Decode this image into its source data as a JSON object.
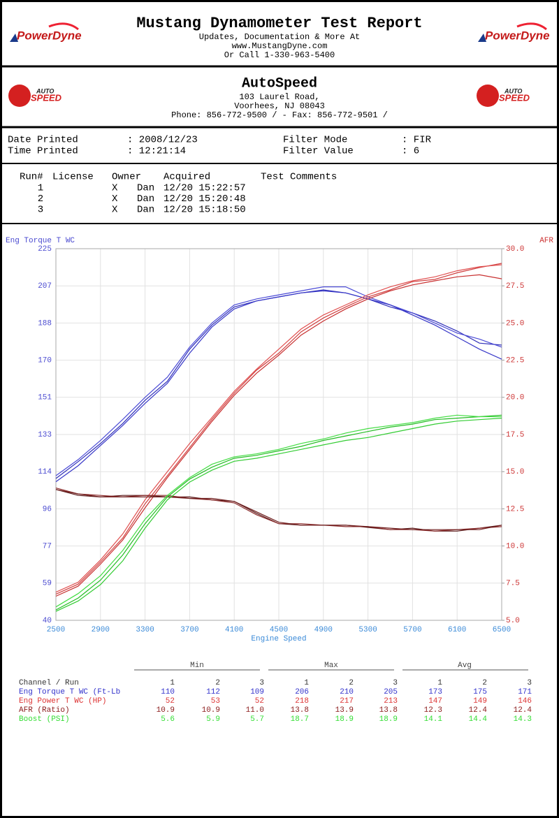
{
  "header": {
    "title": "Mustang Dynamometer Test Report",
    "lines": [
      "Updates, Documentation & More At",
      "www.MustangDyne.com",
      "Or Call 1-330-963-5400"
    ],
    "logo_text": "PowerDyne"
  },
  "shop": {
    "name": "AutoSpeed",
    "lines": [
      "103 Laurel Road,",
      "Voorhees, NJ  08043",
      "Phone: 856-772-9500 /  - Fax: 856-772-9501 /"
    ],
    "logo_top": "AUTO",
    "logo_bottom": "SPEED"
  },
  "info": [
    [
      "Date Printed",
      ": 2008/12/23",
      "Filter Mode",
      ": FIR"
    ],
    [
      "Time Printed",
      ": 12:21:14",
      "Filter Value",
      ": 6"
    ]
  ],
  "runs": {
    "headers": [
      "Run#",
      "License",
      "Owner",
      "Acquired",
      "Test Comments"
    ],
    "rows": [
      [
        "1",
        "X",
        "Dan",
        "12/20 15:22:57"
      ],
      [
        "2",
        "X",
        "Dan",
        "12/20 15:20:48"
      ],
      [
        "3",
        "X",
        "Dan",
        "12/20 15:18:50"
      ]
    ]
  },
  "chart_data": {
    "type": "line",
    "ylabel": "Eng Torque T WC",
    "y2label": "AFR",
    "xlabel": "Engine Speed",
    "grid": true,
    "xlim": [
      2500,
      6500
    ],
    "xticks": [
      2500,
      2900,
      3300,
      3700,
      4100,
      4500,
      4900,
      5300,
      5700,
      6100,
      6500
    ],
    "ylim": [
      40,
      225
    ],
    "yticks": [
      40,
      {
        "value": 58.5,
        "label": "59"
      },
      77,
      {
        "value": 95.5,
        "label": "96"
      },
      114,
      {
        "value": 132.5,
        "label": "133"
      },
      151,
      {
        "value": 169.5,
        "label": "170"
      },
      188,
      {
        "value": 206.5,
        "label": "207"
      },
      225
    ],
    "y2lim": [
      5,
      30
    ],
    "y2ticks": [
      {
        "value": 5,
        "label": "5.0"
      },
      7.5,
      {
        "value": 10,
        "label": "10.0"
      },
      12.5,
      {
        "value": 15,
        "label": "15.0"
      },
      17.5,
      {
        "value": 20,
        "label": "20.0"
      },
      22.5,
      {
        "value": 25,
        "label": "25.0"
      },
      27.5,
      {
        "value": 30,
        "label": "30.0"
      }
    ],
    "x": [
      2500,
      2700,
      2900,
      3100,
      3300,
      3500,
      3700,
      3900,
      4100,
      4300,
      4500,
      4700,
      4900,
      5100,
      5300,
      5500,
      5700,
      5900,
      6100,
      6300,
      6500
    ],
    "series": [
      {
        "color": "#2e2eb8",
        "values": [
          110.6,
          119,
          128,
          138,
          149.5,
          159,
          175,
          187,
          196,
          199,
          201,
          203,
          204.5,
          203,
          200,
          196,
          193,
          189,
          184,
          178,
          177
        ]
      },
      {
        "color": "#4b4bd6",
        "values": [
          112,
          120,
          129.5,
          140,
          151,
          161,
          176,
          188,
          197,
          200,
          202,
          204,
          206,
          206,
          201,
          197,
          193,
          188,
          183,
          180,
          176
        ]
      },
      {
        "color": "#3838c8",
        "values": [
          109,
          117,
          127,
          137,
          148,
          158,
          173,
          186,
          195,
          199,
          201,
          203,
          204,
          203,
          200,
          197,
          192,
          187,
          181,
          175,
          170
        ]
      },
      {
        "color": "#d04040",
        "values": [
          53,
          58,
          69,
          81,
          98,
          112,
          126,
          140,
          153,
          164.5,
          173,
          183.6,
          190.5,
          196,
          201,
          204.5,
          208.6,
          209.7,
          213,
          215.6,
          217.7
        ]
      },
      {
        "color": "#e05050",
        "values": [
          54,
          59,
          70,
          83,
          100,
          114,
          128,
          141,
          154,
          165,
          175,
          185,
          192,
          197,
          202,
          206,
          209,
          211,
          214,
          216,
          217
        ]
      },
      {
        "color": "#c83030",
        "values": [
          52,
          57,
          68,
          80,
          96,
          111,
          125,
          139,
          152,
          163,
          172,
          182,
          189,
          195,
          200,
          204,
          207,
          209,
          211,
          212,
          210
        ]
      },
      {
        "color": "#5a1a1a",
        "axis": "y2",
        "values": [
          13.8,
          13.4,
          13.3,
          13.4,
          13.4,
          13.3,
          13.3,
          13.1,
          13.0,
          12.2,
          11.5,
          11.4,
          11.4,
          11.4,
          11.25,
          11.1,
          11.2,
          11.0,
          11.0,
          11.2,
          11.4
        ]
      },
      {
        "color": "#8b2b2b",
        "axis": "y2",
        "values": [
          13.9,
          13.5,
          13.4,
          13.3,
          13.4,
          13.4,
          13.2,
          13.1,
          12.9,
          12.1,
          11.5,
          11.5,
          11.4,
          11.3,
          11.3,
          11.1,
          11.1,
          11.0,
          11.1,
          11.2,
          11.3
        ]
      },
      {
        "color": "#701f1f",
        "axis": "y2",
        "values": [
          13.8,
          13.5,
          13.3,
          13.3,
          13.3,
          13.3,
          13.2,
          13.2,
          13.0,
          12.3,
          11.6,
          11.4,
          11.4,
          11.4,
          11.3,
          11.2,
          11.1,
          11.1,
          11.1,
          11.1,
          11.4
        ]
      },
      {
        "color": "#22bb22",
        "axis": "y2",
        "values": [
          5.7,
          6.5,
          7.7,
          9.4,
          11.5,
          13.3,
          14.5,
          15.3,
          15.9,
          16.1,
          16.4,
          16.7,
          17.1,
          17.4,
          17.7,
          18.0,
          18.2,
          18.5,
          18.6,
          18.7,
          18.8
        ]
      },
      {
        "color": "#44dd44",
        "axis": "y2",
        "values": [
          5.9,
          6.8,
          8.0,
          9.7,
          11.8,
          13.4,
          14.6,
          15.5,
          16.0,
          16.2,
          16.5,
          16.9,
          17.2,
          17.6,
          17.9,
          18.1,
          18.3,
          18.6,
          18.8,
          18.7,
          18.7
        ]
      },
      {
        "color": "#33cc33",
        "axis": "y2",
        "values": [
          5.6,
          6.3,
          7.4,
          9.0,
          11.2,
          13.1,
          14.3,
          15.1,
          15.7,
          15.9,
          16.2,
          16.5,
          16.8,
          17.1,
          17.3,
          17.6,
          17.9,
          18.2,
          18.4,
          18.5,
          18.6
        ]
      }
    ]
  },
  "stats": {
    "groups": [
      "Min",
      "Max",
      "Avg"
    ],
    "corner": "Channel / Run",
    "runs": [
      "1",
      "2",
      "3",
      "1",
      "2",
      "3",
      "1",
      "2",
      "3"
    ],
    "rows": [
      {
        "name": "Eng Torque T WC (Ft-Lb",
        "color": "#3333cc",
        "cells": [
          "110",
          "112",
          "109",
          "206",
          "210",
          "205",
          "173",
          "175",
          "171"
        ]
      },
      {
        "name": "Eng Power T WC (HP)",
        "color": "#dd3333",
        "cells": [
          "52",
          "53",
          "52",
          "218",
          "217",
          "213",
          "147",
          "149",
          "146"
        ]
      },
      {
        "name": "AFR (Ratio)",
        "color": "#8b1a1a",
        "cells": [
          "10.9",
          "10.9",
          "11.0",
          "13.8",
          "13.9",
          "13.8",
          "12.3",
          "12.4",
          "12.4"
        ]
      },
      {
        "name": "Boost (PSI)",
        "color": "#33dd33",
        "cells": [
          "5.6",
          "5.9",
          "5.7",
          "18.7",
          "18.9",
          "18.9",
          "14.1",
          "14.4",
          "14.3"
        ]
      }
    ]
  }
}
